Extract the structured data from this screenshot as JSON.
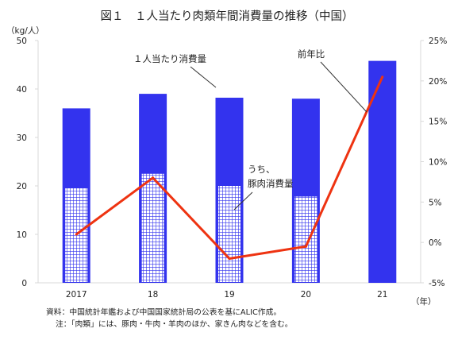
{
  "title": "図１　１人当たり肉類年間消費量の推移（中国）",
  "unit_left": "（kg/人）",
  "unit_right": "（年）",
  "notes": [
    "資料：中国統計年鑑および中国国家統計局の公表を基にALIC作成。",
    "注：「肉類」には、豚肉・牛肉・羊肉のほか、家きん肉などを含む。"
  ],
  "colors": {
    "total_bar": "#3333ee",
    "pork_grid_line": "#3333ee",
    "pork_fill": "#ffffff",
    "growth_line": "#ee3311",
    "axis_grid": "#d9d9d9",
    "text": "#222222"
  },
  "chart_data": {
    "type": "bar",
    "categories": [
      "2017",
      "18",
      "19",
      "20",
      "21"
    ],
    "series": [
      {
        "name": "１人当たり消費量",
        "kind": "bar",
        "axis": "left",
        "values": [
          36.0,
          39.0,
          38.2,
          38.0,
          45.8
        ]
      },
      {
        "name": "うち、豚肉消費量",
        "kind": "bar-overlay-hatched",
        "axis": "left",
        "values": [
          19.5,
          22.5,
          20.0,
          17.8,
          null
        ]
      },
      {
        "name": "前年比",
        "kind": "line",
        "axis": "right",
        "values": [
          1.0,
          8.0,
          -2.0,
          -0.5,
          20.5
        ]
      }
    ],
    "y_left": {
      "min": 0,
      "max": 50,
      "ticks": [
        "0",
        "10",
        "20",
        "30",
        "40",
        "50"
      ]
    },
    "y_right": {
      "min": -5,
      "max": 25,
      "ticks": [
        "-5%",
        "0%",
        "5%",
        "10%",
        "15%",
        "20%",
        "25%"
      ]
    },
    "annotations": {
      "total": "１人当たり消費量",
      "pork_line1": "うち、",
      "pork_line2": "豚肉消費量",
      "growth": "前年比"
    },
    "grid": false,
    "legend": "none"
  }
}
